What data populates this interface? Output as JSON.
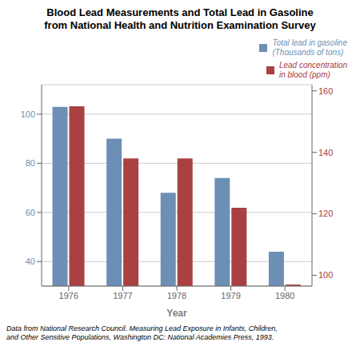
{
  "chart_data": {
    "type": "bar",
    "title": "Blood Lead Measurements and Total Lead in Gasoline\nfrom National Health and Nutrition Examination Survey",
    "xlabel": "Year",
    "categories": [
      "1976",
      "1977",
      "1978",
      "1979",
      "1980"
    ],
    "series": [
      {
        "name": "Total lead in gasoline\n(Thousands of tons)",
        "color": "#6e8fb5",
        "values": [
          103,
          90,
          68,
          74,
          44
        ]
      },
      {
        "name": "Lead concentration\nin blood (ppm)",
        "color": "#a94042",
        "values": [
          155,
          138,
          138,
          122,
          97
        ],
        "axis": "y2"
      }
    ],
    "ylim": [
      30,
      112
    ],
    "yticks": [
      40,
      60,
      80,
      100
    ],
    "y2lim": [
      96.5,
      162
    ],
    "y2ticks": [
      100,
      120,
      140,
      160
    ],
    "grid": true,
    "legend": "upper right",
    "footnote": "Data from National Research Council. Measuring Lead Exposure in Infants, Children,\nand Other Sensitive Populations, Washington DC: National Academies Press, 1993."
  }
}
